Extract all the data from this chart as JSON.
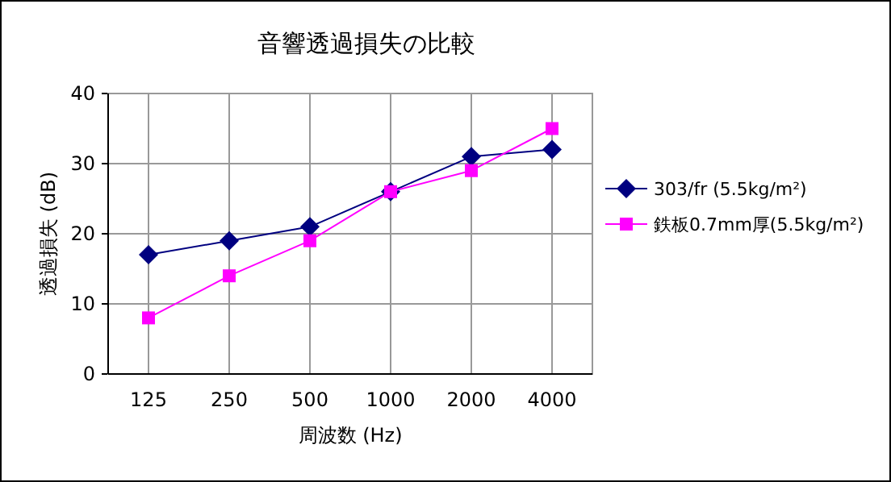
{
  "chart_data": {
    "type": "line",
    "title": "音響透過損失の比較",
    "xlabel": "周波数 (Hz)",
    "ylabel": "透過損失 (dB)",
    "categories": [
      "125",
      "250",
      "500",
      "1000",
      "2000",
      "4000"
    ],
    "series": [
      {
        "name": "303/fr (5.5kg/m²)",
        "color": "#000080",
        "marker": "diamond",
        "values": [
          17,
          19,
          21,
          26,
          31,
          32
        ]
      },
      {
        "name": "鉄板0.7mm厚(5.5kg/m²)",
        "color": "#ff00ff",
        "marker": "square",
        "values": [
          8,
          14,
          19,
          26,
          29,
          35
        ]
      }
    ],
    "ylim": [
      0,
      40
    ],
    "yticks": [
      0,
      10,
      20,
      30,
      40
    ],
    "grid": true,
    "legend": "right",
    "line_style": "solid"
  }
}
